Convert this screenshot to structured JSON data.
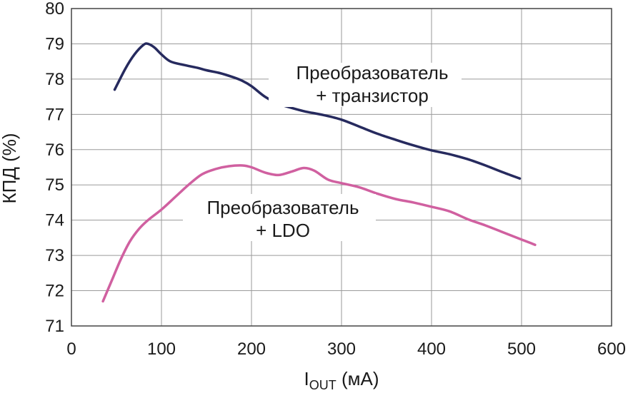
{
  "chart_data": {
    "type": "line",
    "xlabel_main": "I",
    "xlabel_sub": "OUT",
    "xlabel_unit": " (мА)",
    "ylabel": "КПД (%)",
    "xlim": [
      0,
      600
    ],
    "ylim": [
      71,
      80
    ],
    "xticks": [
      0,
      100,
      200,
      300,
      400,
      500,
      600
    ],
    "yticks": [
      71,
      72,
      73,
      74,
      75,
      76,
      77,
      78,
      79,
      80
    ],
    "xtick_labels": [
      "0",
      "100",
      "200",
      "300",
      "400",
      "500",
      "600"
    ],
    "ytick_labels": [
      "71",
      "72",
      "73",
      "74",
      "75",
      "76",
      "77",
      "78",
      "79",
      "80"
    ],
    "grid": true,
    "series": [
      {
        "name_line1": "Преобразователь",
        "name_line2": "+ транзистор",
        "color": "#262a5e",
        "x": [
          48,
          60,
          70,
          80,
          85,
          92,
          100,
          110,
          125,
          140,
          150,
          165,
          180,
          190,
          200,
          215,
          230,
          245,
          260,
          280,
          300,
          320,
          340,
          360,
          380,
          400,
          420,
          440,
          460,
          480,
          498
        ],
        "y": [
          77.7,
          78.3,
          78.7,
          78.97,
          79.0,
          78.9,
          78.7,
          78.5,
          78.4,
          78.32,
          78.25,
          78.17,
          78.05,
          77.95,
          77.8,
          77.5,
          77.3,
          77.18,
          77.08,
          76.98,
          76.85,
          76.65,
          76.45,
          76.28,
          76.12,
          75.98,
          75.87,
          75.73,
          75.55,
          75.35,
          75.18
        ]
      },
      {
        "name_line1": "Преобразователь",
        "name_line2": "+ LDO",
        "color": "#d060a0",
        "x": [
          35,
          45,
          55,
          65,
          75,
          85,
          100,
          115,
          130,
          145,
          160,
          175,
          190,
          200,
          215,
          230,
          245,
          258,
          270,
          285,
          300,
          320,
          340,
          360,
          380,
          400,
          420,
          440,
          460,
          480,
          500,
          515
        ],
        "y": [
          71.7,
          72.3,
          72.9,
          73.4,
          73.75,
          74.0,
          74.3,
          74.65,
          75.0,
          75.3,
          75.45,
          75.53,
          75.55,
          75.5,
          75.35,
          75.28,
          75.38,
          75.48,
          75.4,
          75.15,
          75.05,
          74.93,
          74.75,
          74.6,
          74.5,
          74.38,
          74.25,
          74.03,
          73.85,
          73.65,
          73.45,
          73.3
        ]
      }
    ]
  }
}
